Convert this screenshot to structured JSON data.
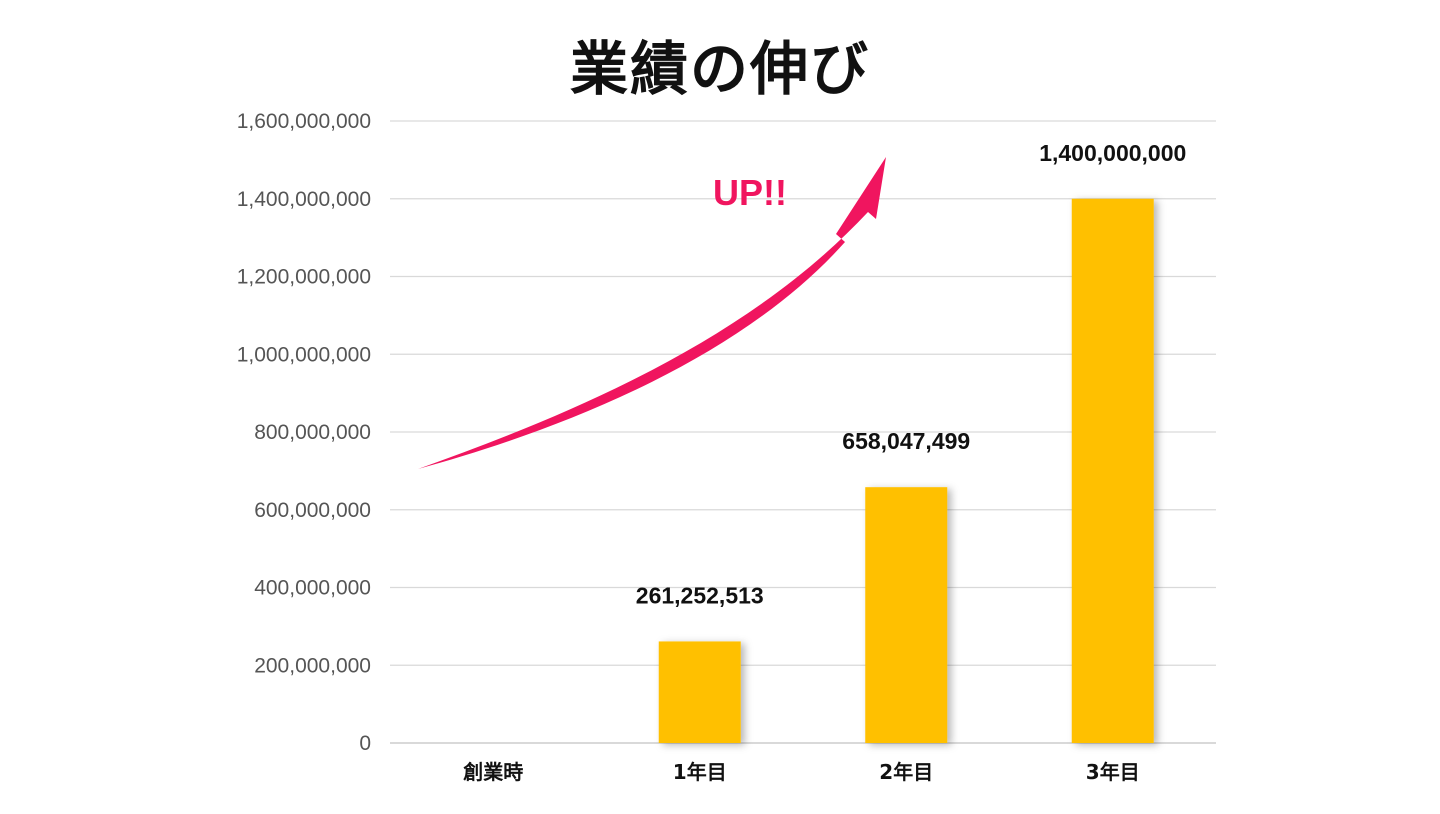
{
  "chart_data": {
    "type": "bar",
    "title": "業績の伸び",
    "categories": [
      "創業時",
      "1年目",
      "2年目",
      "3年目"
    ],
    "values": [
      0,
      261252513,
      658047499,
      1400000000
    ],
    "data_labels": [
      "",
      "261,252,513",
      "658,047,499",
      "1,400,000,000"
    ],
    "y_ticks": [
      {
        "value": 0,
        "label": "0"
      },
      {
        "value": 200000000,
        "label": "200,000,000"
      },
      {
        "value": 400000000,
        "label": "400,000,000"
      },
      {
        "value": 600000000,
        "label": "600,000,000"
      },
      {
        "value": 800000000,
        "label": "800,000,000"
      },
      {
        "value": 1000000000,
        "label": "1,000,000,000"
      },
      {
        "value": 1200000000,
        "label": "1,200,000,000"
      },
      {
        "value": 1400000000,
        "label": "1,400,000,000"
      },
      {
        "value": 1600000000,
        "label": "1,600,000,000"
      }
    ],
    "ylim": [
      0,
      1600000000
    ],
    "xlabel": "",
    "ylabel": "",
    "grid": true,
    "legend": "none",
    "annotation": {
      "text": "UP!!",
      "kind": "upward-curved-arrow"
    }
  },
  "colors": {
    "bar": "#FFC000",
    "grid": "#D9D9D9",
    "arrow": "#F0155F",
    "annotation_text": "#F0155F"
  }
}
